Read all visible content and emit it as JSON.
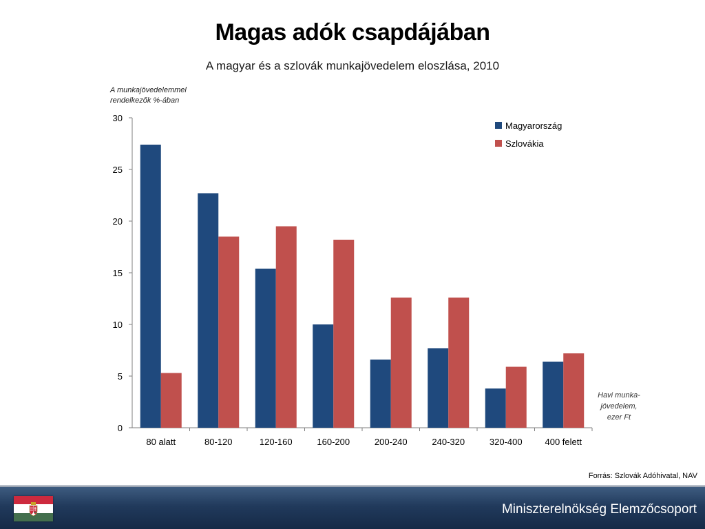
{
  "colors": {
    "series_1": "#1f497d",
    "series_2": "#c0504d",
    "flag_red": "#cd2a3e",
    "flag_white": "#ffffff",
    "flag_green": "#436f4d"
  },
  "footer": {
    "source": "Forrás: Szlovák Adóhivatal, NAV",
    "organization": "Miniszterelnökség Elemzőcsoport",
    "flag_icon": "hungarian-flag-icon"
  },
  "chart_data": {
    "type": "bar",
    "title": "Magas adók csapdájában",
    "subtitle": "A magyar és a szlovák munkajövedelem eloszlása, 2010",
    "ylabel_lines": [
      "A munkajövedelemmel",
      "rendelkezők %-ában"
    ],
    "xlabel_lines": [
      "Havi munka-",
      "jövedelem,",
      "ezer Ft"
    ],
    "categories": [
      "80 alatt",
      "80-120",
      "120-160",
      "160-200",
      "200-240",
      "240-320",
      "320-400",
      "400 felett"
    ],
    "series": [
      {
        "name": "Magyarország",
        "color": "#1f497d",
        "values": [
          27.4,
          22.7,
          15.4,
          10.0,
          6.6,
          7.7,
          3.8,
          6.4
        ]
      },
      {
        "name": "Szlovákia",
        "color": "#c0504d",
        "values": [
          5.3,
          18.5,
          19.5,
          18.2,
          12.6,
          12.6,
          5.9,
          7.2
        ]
      }
    ],
    "yticks": [
      0,
      5,
      10,
      15,
      20,
      25,
      30
    ],
    "ylim": [
      0,
      30
    ],
    "grid": false,
    "legend_position": "top-right"
  }
}
